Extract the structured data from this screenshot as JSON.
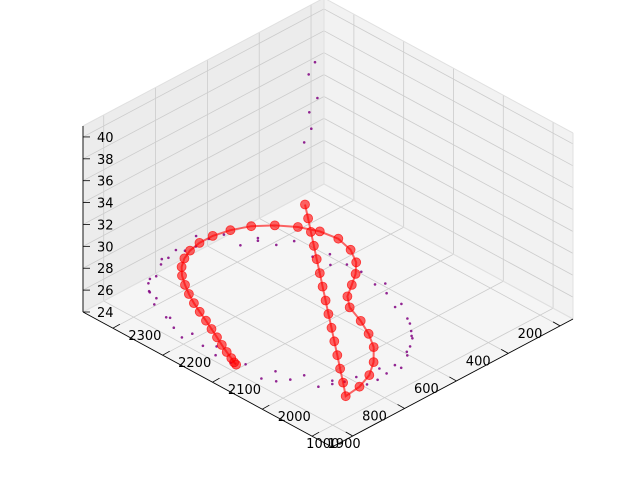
{
  "chart_data": {
    "type": "scatter",
    "projection": "3d",
    "title": "",
    "xlabel": "",
    "ylabel": "",
    "zlabel": "",
    "xlim": [
      150,
      1080
    ],
    "ylim": [
      1860,
      2360
    ],
    "zlim": [
      24,
      41
    ],
    "x_ticks": [
      200,
      400,
      600,
      800,
      1000
    ],
    "y_ticks": [
      1900,
      2000,
      2100,
      2200,
      2300
    ],
    "z_ticks": [
      24,
      26,
      28,
      30,
      32,
      34,
      36,
      38,
      40
    ],
    "grid": true,
    "legend": "none",
    "colors": {
      "scatter": "#800080",
      "path": "#ff0000",
      "pane": "#f2f2f2",
      "grid": "#cccccc"
    },
    "series": [
      {
        "style": "scatter",
        "color": "#800080",
        "points": [
          [
            900,
            2321,
            24.6
          ],
          [
            945,
            2287,
            24.8
          ],
          [
            980,
            2245,
            25.1
          ],
          [
            1006,
            2200,
            24.7
          ],
          [
            1019,
            2151,
            25.3
          ],
          [
            1014,
            2098,
            25.0
          ],
          [
            995,
            2046,
            24.6
          ],
          [
            966,
            2003,
            25.2
          ],
          [
            925,
            1968,
            24.9
          ],
          [
            876,
            1941,
            25.4
          ],
          [
            818,
            1926,
            24.8
          ],
          [
            752,
            1921,
            25.1
          ],
          [
            688,
            1925,
            24.7
          ],
          [
            625,
            1940,
            25.5
          ],
          [
            568,
            1965,
            24.9
          ],
          [
            518,
            2001,
            25.2
          ],
          [
            477,
            2047,
            24.6
          ],
          [
            451,
            2101,
            25.0
          ],
          [
            446,
            2160,
            25.3
          ],
          [
            465,
            2219,
            24.8
          ],
          [
            505,
            2271,
            25.1
          ],
          [
            561,
            2314,
            24.7
          ],
          [
            627,
            2343,
            25.4
          ],
          [
            696,
            2355,
            24.9
          ],
          [
            766,
            2352,
            25.2
          ],
          [
            832,
            2342,
            24.6
          ],
          [
            870,
            2335,
            25.0
          ],
          [
            930,
            2304,
            25.3
          ],
          [
            995,
            2222,
            24.9
          ],
          [
            1020,
            2125,
            25.1
          ],
          [
            980,
            2024,
            24.7
          ],
          [
            900,
            1953,
            25.2
          ],
          [
            785,
            1922,
            24.9
          ],
          [
            655,
            1930,
            25.3
          ],
          [
            540,
            1982,
            24.8
          ],
          [
            460,
            2073,
            25.0
          ],
          [
            452,
            2190,
            24.6
          ],
          [
            530,
            2295,
            25.2
          ],
          [
            660,
            2352,
            24.9
          ],
          [
            800,
            2349,
            25.1
          ],
          [
            912,
            2316,
            25.6
          ],
          [
            958,
            2276,
            25.8
          ],
          [
            990,
            2232,
            25.5
          ],
          [
            1012,
            2176,
            25.7
          ],
          [
            1018,
            2124,
            25.9
          ],
          [
            1006,
            2072,
            25.4
          ],
          [
            981,
            2025,
            25.6
          ],
          [
            947,
            1985,
            25.8
          ],
          [
            900,
            1953,
            25.5
          ],
          [
            848,
            1932,
            25.7
          ],
          [
            780,
            1921,
            25.9
          ],
          [
            718,
            1922,
            25.4
          ],
          [
            655,
            1931,
            25.6
          ],
          [
            596,
            1952,
            25.8
          ],
          [
            543,
            1983,
            25.5
          ],
          [
            497,
            2024,
            25.7
          ],
          [
            463,
            2074,
            25.9
          ],
          [
            448,
            2130,
            25.4
          ],
          [
            454,
            2190,
            25.6
          ],
          [
            484,
            2246,
            25.8
          ],
          [
            532,
            2294,
            25.5
          ],
          [
            594,
            2330,
            25.7
          ],
          [
            661,
            2351,
            25.9
          ],
          [
            731,
            2355,
            25.4
          ],
          [
            799,
            2348,
            25.6
          ],
          [
            300,
            2300,
            38.5
          ],
          [
            305,
            2310,
            37.2
          ],
          [
            310,
            2290,
            35.6
          ],
          [
            318,
            2302,
            34.1
          ],
          [
            322,
            2296,
            32.8
          ],
          [
            330,
            2306,
            31.4
          ]
        ]
      },
      {
        "style": "line",
        "color": "#ff0000",
        "marker": "circle",
        "points": [
          [
            300,
            2320,
            25
          ],
          [
            344,
            2291,
            25
          ],
          [
            387,
            2263,
            25
          ],
          [
            431,
            2234,
            25
          ],
          [
            474,
            2206,
            25
          ],
          [
            518,
            2177,
            25
          ],
          [
            561,
            2149,
            25
          ],
          [
            605,
            2120,
            25
          ],
          [
            648,
            2092,
            25
          ],
          [
            692,
            2063,
            25
          ],
          [
            735,
            2035,
            25
          ],
          [
            779,
            2006,
            25
          ],
          [
            822,
            1978,
            25
          ],
          [
            866,
            1949,
            25
          ],
          [
            910,
            1921,
            25
          ],
          [
            849,
            1925,
            25
          ],
          [
            788,
            1937,
            25
          ],
          [
            733,
            1957,
            25
          ],
          [
            679,
            1985,
            25
          ],
          [
            641,
            2015,
            25
          ],
          [
            610,
            2047,
            25
          ],
          [
            583,
            2083,
            25
          ],
          [
            548,
            2106,
            25
          ],
          [
            498,
            2123,
            25
          ],
          [
            451,
            2140,
            25
          ],
          [
            408,
            2161,
            25
          ],
          [
            374,
            2190,
            25
          ],
          [
            358,
            2223,
            25
          ],
          [
            368,
            2255,
            25
          ],
          [
            395,
            2285,
            25
          ],
          [
            434,
            2311,
            25
          ],
          [
            483,
            2333,
            25
          ],
          [
            538,
            2346,
            25
          ],
          [
            593,
            2353,
            25
          ],
          [
            644,
            2353,
            25
          ],
          [
            690,
            2348,
            25
          ],
          [
            729,
            2339,
            25
          ],
          [
            765,
            2326,
            25
          ],
          [
            796,
            2309,
            25
          ],
          [
            823,
            2289,
            25
          ],
          [
            848,
            2268,
            25
          ],
          [
            871,
            2246,
            25
          ],
          [
            891,
            2224,
            25
          ],
          [
            911,
            2201,
            25
          ],
          [
            930,
            2180,
            25
          ],
          [
            949,
            2159,
            25
          ],
          [
            967,
            2140,
            25
          ],
          [
            983,
            2122,
            25
          ],
          [
            996,
            2106,
            25
          ],
          [
            1006,
            2095,
            25
          ],
          [
            1010,
            2089,
            25
          ]
        ]
      }
    ]
  }
}
